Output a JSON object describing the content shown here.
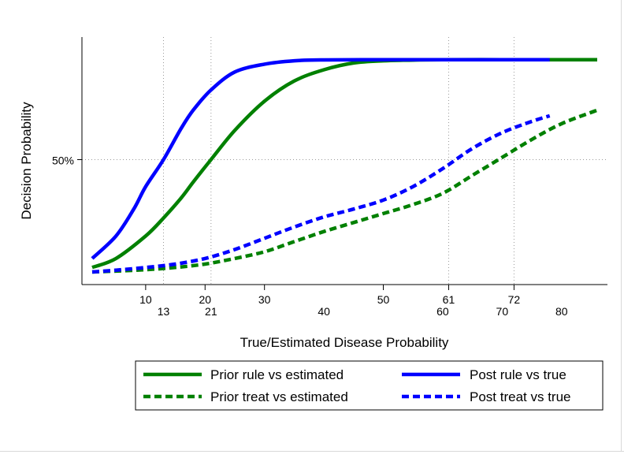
{
  "chart_data": {
    "type": "line",
    "title": "",
    "xlabel": "True/Estimated Disease Probability",
    "ylabel": "Decision Probability",
    "xlim": [
      1,
      86
    ],
    "ylim": [
      0,
      1
    ],
    "y_ticks": [
      {
        "value": 0.5,
        "label": "50%"
      }
    ],
    "y_reference_lines": [
      0.5
    ],
    "x_ticks_row1": [
      {
        "value": 10,
        "label": "10"
      },
      {
        "value": 20,
        "label": "20"
      },
      {
        "value": 30,
        "label": "30"
      },
      {
        "value": 50,
        "label": "50"
      },
      {
        "value": 61,
        "label": "61"
      },
      {
        "value": 72,
        "label": "72"
      }
    ],
    "x_ticks_row2": [
      {
        "value": 13,
        "label": "13"
      },
      {
        "value": 21,
        "label": "21"
      },
      {
        "value": 40,
        "label": "40"
      },
      {
        "value": 60,
        "label": "60"
      },
      {
        "value": 70,
        "label": "70"
      },
      {
        "value": 80,
        "label": "80"
      }
    ],
    "x_reference_lines": [
      13,
      21,
      61,
      72
    ],
    "legend_position": "bottom",
    "series": [
      {
        "name": "Prior rule vs estimated",
        "color": "#008000",
        "style": "solid",
        "x": [
          1,
          5,
          10,
          13,
          16,
          18,
          21,
          25,
          30,
          35,
          40,
          45,
          50,
          55,
          60,
          70,
          80,
          86
        ],
        "y": [
          0.02,
          0.06,
          0.16,
          0.24,
          0.33,
          0.4,
          0.5,
          0.63,
          0.76,
          0.85,
          0.9,
          0.93,
          0.94,
          0.943,
          0.945,
          0.945,
          0.945,
          0.945
        ]
      },
      {
        "name": "Post rule vs true",
        "color": "#0000ff",
        "style": "solid",
        "x": [
          1,
          5,
          8,
          10,
          13,
          16,
          18,
          21,
          25,
          30,
          35,
          40,
          50,
          60,
          70,
          78
        ],
        "y": [
          0.06,
          0.16,
          0.28,
          0.38,
          0.5,
          0.64,
          0.72,
          0.81,
          0.89,
          0.925,
          0.94,
          0.944,
          0.945,
          0.945,
          0.945,
          0.945
        ]
      },
      {
        "name": "Prior treat vs estimated",
        "color": "#008000",
        "style": "dashed",
        "x": [
          1,
          5,
          10,
          15,
          20,
          25,
          30,
          35,
          40,
          45,
          50,
          55,
          60,
          65,
          70,
          75,
          80,
          86
        ],
        "y": [
          0.0,
          0.004,
          0.01,
          0.02,
          0.035,
          0.06,
          0.09,
          0.135,
          0.18,
          0.22,
          0.26,
          0.3,
          0.35,
          0.43,
          0.51,
          0.59,
          0.66,
          0.72
        ]
      },
      {
        "name": "Post treat vs true",
        "color": "#0000ff",
        "style": "dashed",
        "x": [
          1,
          5,
          10,
          15,
          20,
          25,
          30,
          35,
          40,
          45,
          50,
          55,
          60,
          65,
          70,
          75,
          78
        ],
        "y": [
          0.0,
          0.008,
          0.02,
          0.035,
          0.06,
          0.1,
          0.15,
          0.2,
          0.245,
          0.28,
          0.32,
          0.38,
          0.46,
          0.55,
          0.62,
          0.67,
          0.695
        ]
      }
    ]
  }
}
